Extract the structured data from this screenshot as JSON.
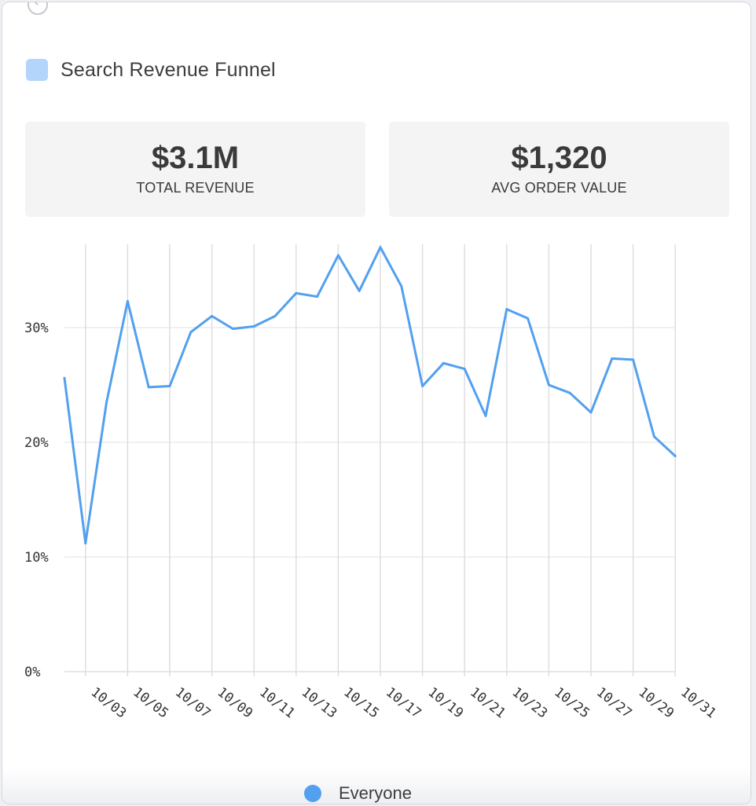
{
  "widget": {
    "title": "Search Revenue Funnel",
    "title_color": "#b3d4fb"
  },
  "kpis": [
    {
      "value": "$3.1M",
      "label": "TOTAL REVENUE"
    },
    {
      "value": "$1,320",
      "label": "AVG ORDER VALUE"
    }
  ],
  "chart_data": {
    "type": "line",
    "title": "",
    "xlabel": "",
    "ylabel": "",
    "ylim": [
      0,
      37
    ],
    "yticks": [
      0,
      10,
      20,
      30
    ],
    "ytick_labels": [
      "0%",
      "10%",
      "20%",
      "30%"
    ],
    "x": [
      "10/02",
      "10/03",
      "10/04",
      "10/05",
      "10/06",
      "10/07",
      "10/08",
      "10/09",
      "10/10",
      "10/11",
      "10/12",
      "10/13",
      "10/14",
      "10/15",
      "10/16",
      "10/17",
      "10/18",
      "10/19",
      "10/20",
      "10/21",
      "10/22",
      "10/23",
      "10/24",
      "10/25",
      "10/26",
      "10/27",
      "10/28",
      "10/29",
      "10/30",
      "10/31"
    ],
    "xtick_labels": [
      "10/03",
      "10/05",
      "10/07",
      "10/09",
      "10/11",
      "10/13",
      "10/15",
      "10/17",
      "10/19",
      "10/21",
      "10/23",
      "10/25",
      "10/27",
      "10/29",
      "10/31"
    ],
    "series": [
      {
        "name": "Everyone",
        "color": "#52a0ef",
        "values": [
          25.6,
          11.2,
          23.5,
          32.3,
          24.8,
          24.9,
          29.6,
          31.0,
          29.9,
          30.1,
          31.0,
          33.0,
          32.7,
          36.3,
          33.2,
          37.0,
          33.6,
          24.9,
          26.9,
          26.4,
          22.3,
          31.6,
          30.8,
          25.0,
          24.3,
          22.6,
          27.3,
          27.2,
          20.5,
          18.8
        ]
      }
    ],
    "grid": true,
    "legend": "bottom-center"
  },
  "legend": {
    "label": "Everyone",
    "color": "#52a0ef"
  }
}
